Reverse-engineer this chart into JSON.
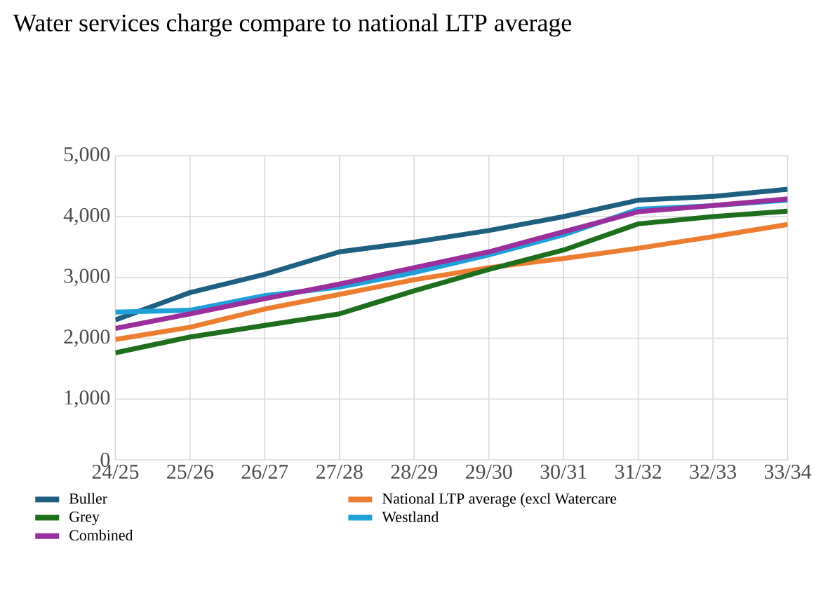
{
  "chart_data": {
    "type": "line",
    "title": "Water services charge compare to national LTP average",
    "categories": [
      "24/25",
      "25/26",
      "26/27",
      "27/28",
      "28/29",
      "29/30",
      "30/31",
      "31/32",
      "32/33",
      "33/34"
    ],
    "series": [
      {
        "name": "Buller",
        "color": "#1f5f80",
        "values": [
          2300,
          2750,
          3050,
          3420,
          3580,
          3770,
          4000,
          4270,
          4330,
          4450
        ]
      },
      {
        "name": "National LTP average (excl Watercare",
        "color": "#ed7d31",
        "values": [
          1980,
          2180,
          2480,
          2720,
          2960,
          3160,
          3310,
          3480,
          3670,
          3870
        ]
      },
      {
        "name": "Grey",
        "color": "#1e6e1e",
        "values": [
          1760,
          2020,
          2210,
          2400,
          2780,
          3130,
          3450,
          3880,
          4000,
          4090
        ]
      },
      {
        "name": "Westland",
        "color": "#1fa0d8",
        "values": [
          2430,
          2460,
          2700,
          2840,
          3080,
          3370,
          3700,
          4120,
          4180,
          4270
        ]
      },
      {
        "name": "Combined",
        "color": "#9b2f9b",
        "values": [
          2160,
          2400,
          2650,
          2890,
          3160,
          3420,
          3750,
          4080,
          4180,
          4290
        ]
      }
    ],
    "ylim": [
      0,
      5000
    ],
    "yticks": [
      {
        "value": 0,
        "label": "0"
      },
      {
        "value": 1000,
        "label": "1,000"
      },
      {
        "value": 2000,
        "label": "2,000"
      },
      {
        "value": 3000,
        "label": "3,000"
      },
      {
        "value": 4000,
        "label": "4,000"
      },
      {
        "value": 5000,
        "label": "5,000"
      }
    ],
    "grid": true,
    "legend": "bottom",
    "marker": "none",
    "line_style": "solid"
  }
}
